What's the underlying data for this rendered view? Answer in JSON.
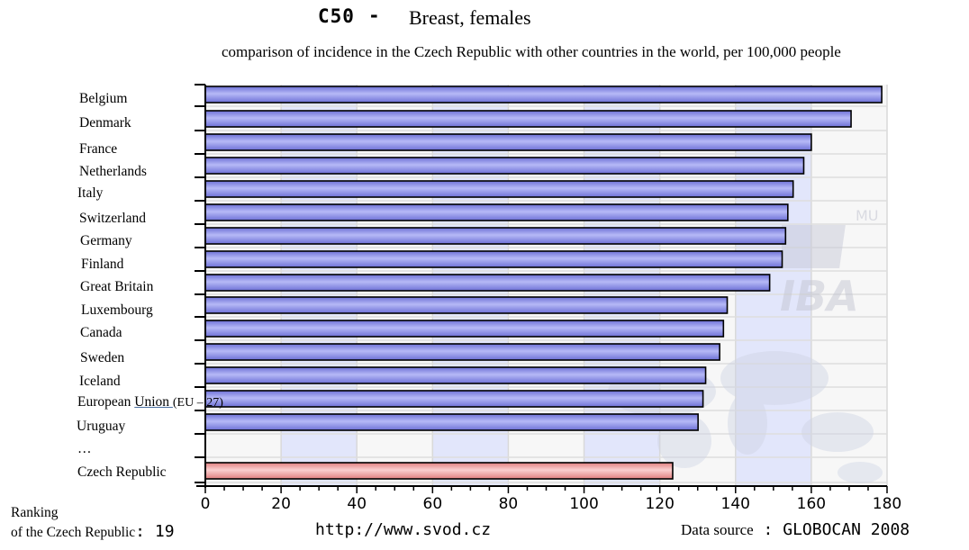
{
  "header": {
    "code": "C50",
    "dash": "-",
    "title": "Breast, females",
    "subtitle": "comparison of incidence in the Czech Republic with other countries in the world, per 100,000 people"
  },
  "watermark": {
    "small": "MU",
    "large": "IBA"
  },
  "chart_data": {
    "type": "bar",
    "orientation": "horizontal",
    "title": "Breast, females",
    "xlabel": "",
    "ylabel": "",
    "xlim": [
      0,
      180
    ],
    "ticks": [
      0,
      20,
      40,
      60,
      80,
      100,
      120,
      140,
      160,
      180
    ],
    "categories": [
      "Belgium",
      "Denmark",
      "France",
      "Netherlands",
      "Italy",
      "Switzerland",
      "Germany",
      "Finland",
      "Great Britain",
      "Luxembourg",
      "Canada",
      "Sweden",
      "Iceland",
      "European Union (EU – 27)",
      "Uruguay",
      "…",
      "Czech Republic"
    ],
    "values": [
      178.6,
      170.5,
      160.0,
      158.0,
      155.2,
      153.8,
      153.2,
      152.3,
      149.0,
      137.8,
      136.8,
      135.8,
      132.1,
      131.4,
      130.1,
      null,
      123.4
    ],
    "highlight": "Czech Republic",
    "colors": {
      "bar": "#8c90ec",
      "highlight": "#f1a4a4",
      "outline": "#000000"
    }
  },
  "labels": {
    "eu_prefix": "European ",
    "eu_link": "Union ",
    "eu_suffix": "(EU – 27)"
  },
  "footer": {
    "ranking_line1": "Ranking",
    "ranking_line2": "of the Czech Republic",
    "ranking_colon": ": ",
    "ranking_value": "19",
    "url": "http://www.svod.cz",
    "source_label": "Data source",
    "source_colon": " : ",
    "source_name": "GLOBOCAN 2008"
  }
}
